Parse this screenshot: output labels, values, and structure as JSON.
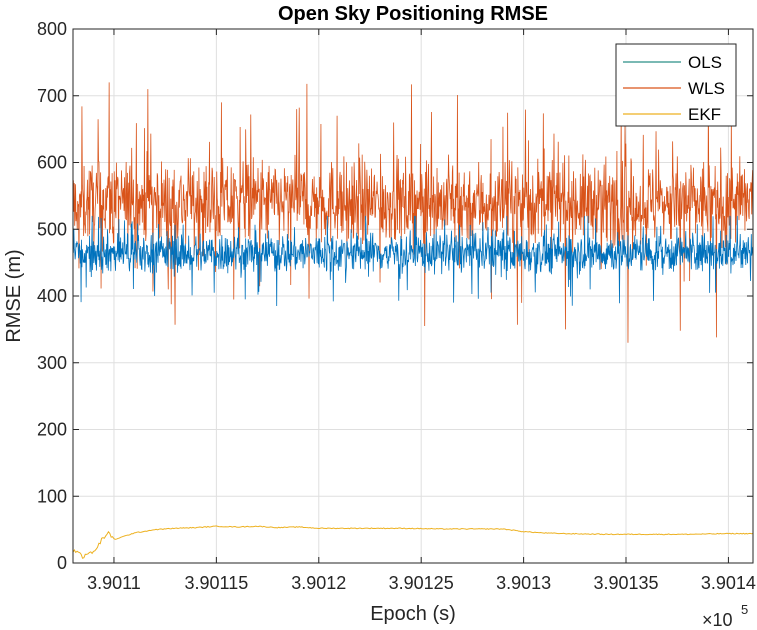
{
  "chart_data": {
    "type": "line",
    "title": "Open Sky Positioning RMSE",
    "xlabel": "Epoch (s)",
    "ylabel": "RMSE (m)",
    "xlim": [
      390108,
      390141.2
    ],
    "ylim": [
      0,
      800
    ],
    "x_scale_exponent_label": "×10",
    "x_scale_exponent_power": "5",
    "x_tick_values": [
      390110,
      390115,
      390120,
      390125,
      390130,
      390135,
      390140
    ],
    "x_tick_labels": [
      "3.9011",
      "3.90115",
      "3.9012",
      "3.90125",
      "3.9013",
      "3.90135",
      "3.9014"
    ],
    "y_tick_values": [
      0,
      100,
      200,
      300,
      400,
      500,
      600,
      700,
      800
    ],
    "y_tick_labels": [
      "0",
      "100",
      "200",
      "300",
      "400",
      "500",
      "600",
      "700",
      "800"
    ],
    "grid": true,
    "legend_position": "top-right",
    "series": [
      {
        "name": "OLS",
        "color": "#0072BD",
        "legend_color": "#2A8F86",
        "mean": 465,
        "spread": 22,
        "dips": [
          400,
          395,
          392,
          390,
          410,
          405
        ]
      },
      {
        "name": "WLS",
        "color": "#D95319",
        "legend_color": "#D95319",
        "mean": 540,
        "spread": 45,
        "peaks": [
          720,
          710,
          690,
          680,
          670,
          660
        ],
        "dips": [
          355,
          357,
          350,
          330,
          348,
          338
        ]
      },
      {
        "name": "EKF",
        "color": "#EDB120",
        "legend_color": "#EDB120",
        "x": [
          390108,
          390108.2,
          390108.5,
          390108.8,
          390109.1,
          390109.4,
          390109.7,
          390110,
          390110.5,
          390111,
          390112,
          390113,
          390114,
          390115,
          390116,
          390117,
          390118,
          390119,
          390120,
          390122,
          390124,
          390126,
          390128,
          390129,
          390130,
          390131,
          390132,
          390134,
          390136,
          390138,
          390140,
          390141.2
        ],
        "y": [
          16,
          20,
          8,
          15,
          18,
          35,
          45,
          35,
          40,
          45,
          50,
          52,
          53,
          55,
          54,
          55,
          53,
          54,
          52,
          52,
          52,
          51,
          51,
          51,
          47,
          45,
          44,
          43,
          43,
          43,
          44,
          44
        ]
      }
    ]
  }
}
